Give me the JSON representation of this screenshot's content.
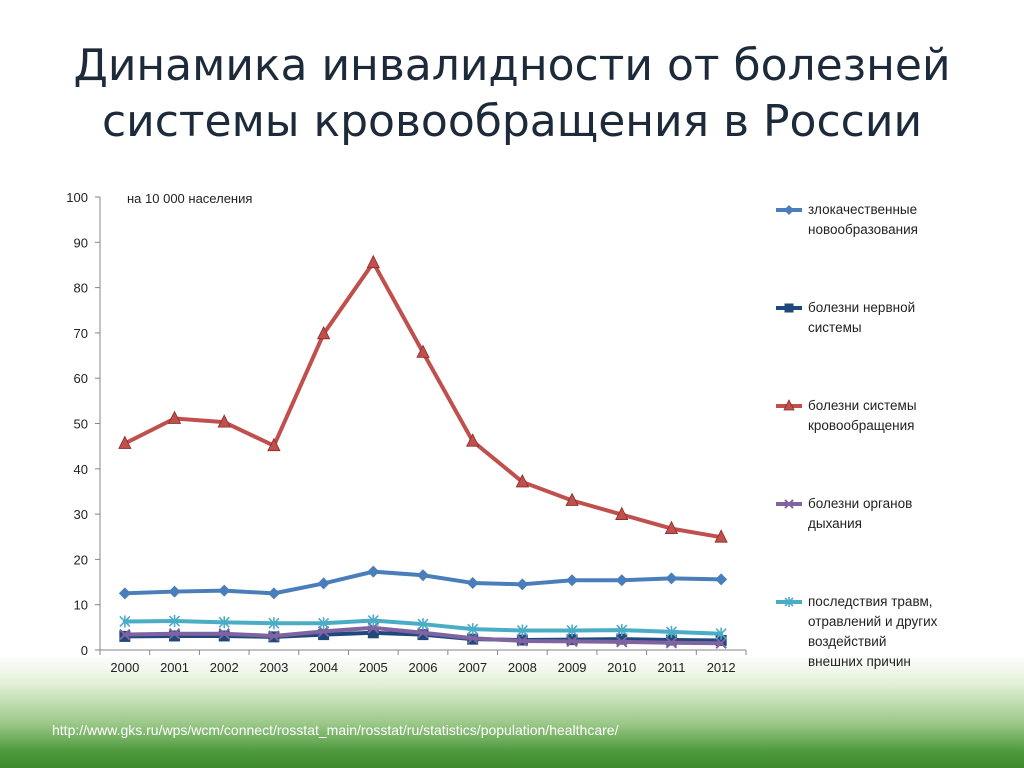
{
  "slide": {
    "title_line1": "Динамика инвалидности от болезней",
    "title_line2": "системы кровообращения в России",
    "source": "http://www.gks.ru/wps/wcm/connect/rosstat_main/rosstat/ru/statistics/population/healthcare/"
  },
  "chart_data": {
    "type": "line",
    "annotation": "на 10 000 населения",
    "categories": [
      "2000",
      "2001",
      "2002",
      "2003",
      "2004",
      "2005",
      "2006",
      "2007",
      "2008",
      "2009",
      "2010",
      "2011",
      "2012"
    ],
    "ylim": [
      0,
      100
    ],
    "yticks": [
      0,
      10,
      20,
      30,
      40,
      50,
      60,
      70,
      80,
      90,
      100
    ],
    "grid": false,
    "legend_position": "right",
    "series": [
      {
        "name": "злокачественные новообразования",
        "legend_lines": [
          "злокачественные",
          "новообразования"
        ],
        "color": "#4a7ebb",
        "marker": "diamond",
        "values": [
          12.5,
          12.9,
          13.1,
          12.5,
          14.7,
          17.3,
          16.5,
          14.8,
          14.5,
          15.4,
          15.4,
          15.8,
          15.6
        ]
      },
      {
        "name": "болезни нервной системы",
        "legend_lines": [
          "болезни нервной",
          "системы"
        ],
        "color": "#1f497d",
        "marker": "square",
        "values": [
          3.0,
          3.1,
          3.1,
          2.9,
          3.4,
          3.8,
          3.4,
          2.4,
          2.2,
          2.3,
          2.4,
          2.2,
          2.1
        ]
      },
      {
        "name": "болезни системы кровообращения",
        "legend_lines": [
          "болезни системы",
          "кровообращения"
        ],
        "color": "#c0504d",
        "marker": "triangle",
        "values": [
          45.6,
          51.1,
          50.3,
          45.1,
          69.8,
          85.5,
          65.7,
          46.1,
          37.1,
          33.0,
          29.9,
          26.8,
          24.9
        ]
      },
      {
        "name": "болезни органов дыхания",
        "legend_lines": [
          "болезни органов",
          "дыхания"
        ],
        "color": "#8064a2",
        "marker": "x",
        "values": [
          3.4,
          3.6,
          3.6,
          3.1,
          4.1,
          4.9,
          3.8,
          2.6,
          2.0,
          1.9,
          1.8,
          1.6,
          1.5
        ]
      },
      {
        "name": "последствия травм, отравлений и других воздействий внешних причин",
        "legend_lines": [
          "последствия травм,",
          "отравлений и других",
          "воздействий",
          "внешних причин"
        ],
        "color": "#4bacc6",
        "marker": "star",
        "values": [
          6.3,
          6.4,
          6.1,
          5.9,
          5.9,
          6.5,
          5.7,
          4.6,
          4.3,
          4.3,
          4.4,
          4.0,
          3.6
        ]
      }
    ]
  }
}
